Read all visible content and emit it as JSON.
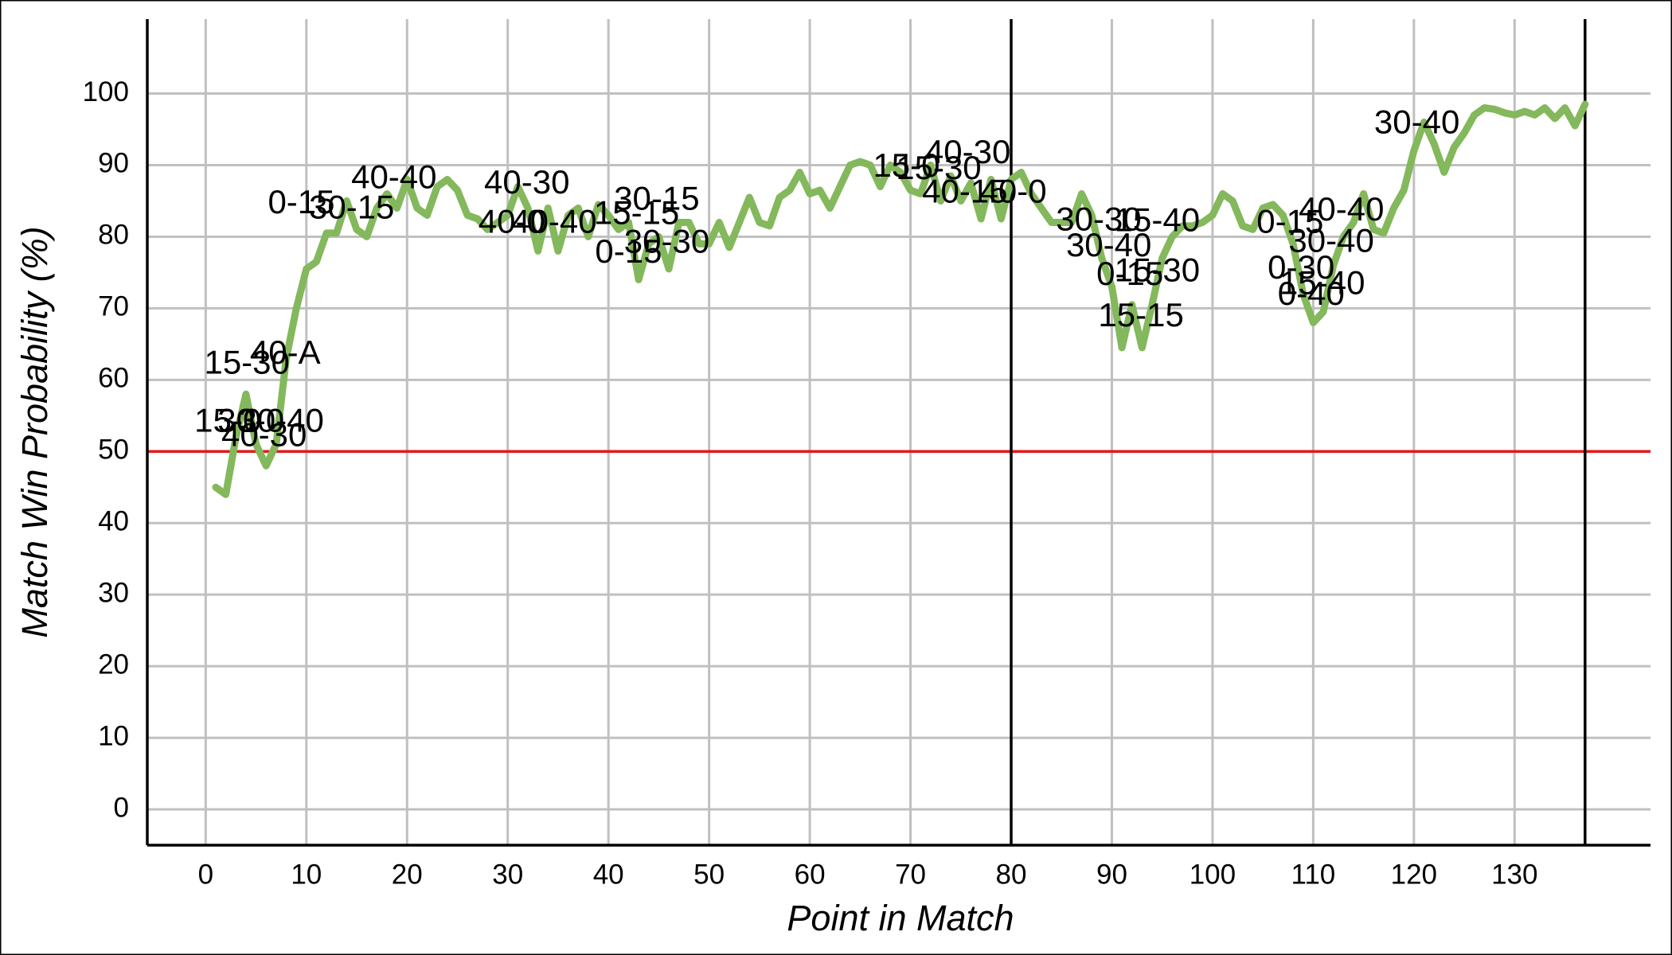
{
  "chart_data": {
    "type": "line",
    "xlabel": "Point in Match",
    "ylabel": "Match Win Probability (%)",
    "x": [
      1,
      2,
      3,
      4,
      5,
      6,
      7,
      8,
      9,
      10,
      11,
      12,
      13,
      14,
      15,
      16,
      17,
      18,
      19,
      20,
      21,
      22,
      23,
      24,
      25,
      26,
      27,
      28,
      29,
      30,
      31,
      32,
      33,
      34,
      35,
      36,
      37,
      38,
      39,
      40,
      41,
      42,
      43,
      44,
      45,
      46,
      47,
      48,
      49,
      50,
      51,
      52,
      53,
      54,
      55,
      56,
      57,
      58,
      59,
      60,
      61,
      62,
      63,
      64,
      65,
      66,
      67,
      68,
      69,
      70,
      71,
      72,
      73,
      74,
      75,
      76,
      77,
      78,
      79,
      80,
      81,
      82,
      83,
      84,
      85,
      86,
      87,
      88,
      89,
      90,
      91,
      92,
      93,
      94,
      95,
      96,
      97,
      98,
      99,
      100,
      101,
      102,
      103,
      104,
      105,
      106,
      107,
      108,
      109,
      110,
      111,
      112,
      113,
      114,
      115,
      116,
      117,
      118,
      119,
      120,
      121,
      122,
      123,
      124,
      125,
      126,
      127,
      128,
      129,
      130,
      131,
      132,
      133,
      134,
      135,
      136,
      137
    ],
    "values": [
      45,
      44,
      52,
      58,
      51,
      48,
      51,
      63,
      70,
      75.5,
      76.5,
      80.5,
      80.5,
      85,
      81,
      80,
      84,
      86,
      84,
      88,
      84,
      83,
      87,
      88,
      86.5,
      83,
      82.5,
      81,
      82,
      83,
      87,
      84,
      78,
      84,
      78,
      83,
      84,
      80,
      84.5,
      83,
      81,
      82,
      74,
      79,
      80,
      75.5,
      82,
      82,
      79,
      79,
      82,
      78.5,
      82,
      85.5,
      82,
      81.5,
      85.5,
      86.5,
      89,
      86,
      86.5,
      84,
      87,
      90,
      90.5,
      90,
      87,
      90,
      89,
      86.5,
      86,
      90,
      85,
      88.5,
      85,
      87.5,
      82.5,
      88,
      82.5,
      88,
      89,
      86,
      84,
      82,
      82,
      82,
      86,
      83,
      77,
      73,
      64.5,
      70.5,
      64.5,
      70.5,
      77,
      80,
      81.5,
      81.5,
      82,
      83,
      86,
      85,
      81.5,
      81,
      84,
      84.5,
      83,
      79,
      72,
      68,
      69.5,
      76,
      80,
      82,
      86,
      81,
      80.5,
      84,
      86.5,
      92,
      96,
      93,
      89,
      92.5,
      94.5,
      97,
      98,
      97.8,
      97.3,
      97,
      97.5,
      97,
      98,
      96.5,
      98,
      95.5,
      98.5
    ],
    "color": "#84b85c",
    "xlim": [
      -5.8,
      143.5
    ],
    "ylim": [
      -5,
      110.4
    ],
    "xticks": [
      0,
      10,
      20,
      30,
      40,
      50,
      60,
      70,
      80,
      90,
      100,
      110,
      120,
      130
    ],
    "yticks": [
      0,
      10,
      20,
      30,
      40,
      50,
      60,
      70,
      80,
      90,
      100
    ],
    "grid": true,
    "hlines": [
      {
        "value": 50,
        "color": "#e31a1c"
      }
    ],
    "vlines": [
      {
        "value": 80,
        "color": "#000000"
      },
      {
        "value": 137,
        "color": "#000000"
      }
    ],
    "annotations": [
      {
        "text": "15-30",
        "x": 4.1,
        "y": 62.1
      },
      {
        "text": "40-A",
        "x": 7.9,
        "y": 63.5
      },
      {
        "text": "15-0",
        "x": 2.2,
        "y": 54
      },
      {
        "text": "30-0",
        "x": 4.5,
        "y": 54
      },
      {
        "text": "30-40",
        "x": 7.5,
        "y": 54
      },
      {
        "text": "40-30",
        "x": 5.8,
        "y": 52
      },
      {
        "text": "0-15",
        "x": 9.5,
        "y": 84.5
      },
      {
        "text": "30-15",
        "x": 14.5,
        "y": 83.8
      },
      {
        "text": "40-40",
        "x": 18.7,
        "y": 88
      },
      {
        "text": "40-30",
        "x": 31.9,
        "y": 87.3
      },
      {
        "text": "40-0",
        "x": 30.4,
        "y": 81.8
      },
      {
        "text": "40-40",
        "x": 34.6,
        "y": 81.8
      },
      {
        "text": "30-15",
        "x": 44.8,
        "y": 85
      },
      {
        "text": "15-15",
        "x": 42.8,
        "y": 83
      },
      {
        "text": "0-15",
        "x": 42,
        "y": 77.6
      },
      {
        "text": "30-30",
        "x": 45.8,
        "y": 79
      },
      {
        "text": "15-0",
        "x": 69.6,
        "y": 89.6
      },
      {
        "text": "40-30",
        "x": 75.7,
        "y": 91.5
      },
      {
        "text": "15-30",
        "x": 72.8,
        "y": 89.3
      },
      {
        "text": "40-15",
        "x": 75.4,
        "y": 86
      },
      {
        "text": "40-0",
        "x": 80.2,
        "y": 86
      },
      {
        "text": "30-30",
        "x": 88.7,
        "y": 82.1
      },
      {
        "text": "15-40",
        "x": 94.5,
        "y": 82
      },
      {
        "text": "30-40",
        "x": 89.7,
        "y": 78.5
      },
      {
        "text": "0-15",
        "x": 91.8,
        "y": 74.5
      },
      {
        "text": "15-30",
        "x": 94.5,
        "y": 75
      },
      {
        "text": "15-15",
        "x": 92.9,
        "y": 68.7
      },
      {
        "text": "0-15",
        "x": 107.7,
        "y": 81.8
      },
      {
        "text": "40-40",
        "x": 112.8,
        "y": 83.5
      },
      {
        "text": "30-40",
        "x": 111.8,
        "y": 79.1
      },
      {
        "text": "0-30",
        "x": 108.8,
        "y": 75.4
      },
      {
        "text": "15-40",
        "x": 110.9,
        "y": 73.2
      },
      {
        "text": "0-40",
        "x": 109.8,
        "y": 71.7
      },
      {
        "text": "30-40",
        "x": 120.3,
        "y": 95.7
      }
    ]
  }
}
